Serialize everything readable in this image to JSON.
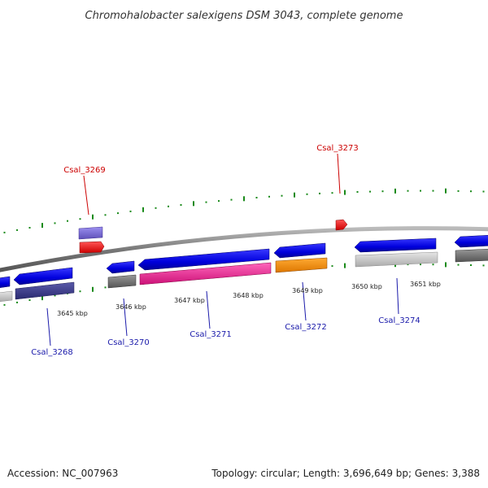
{
  "title": "Chromohalobacter salexigens DSM 3043, complete genome",
  "footer": {
    "accession": "Accession: NC_007963",
    "summary": "Topology: circular; Length: 3,696,649 bp; Genes: 3,388"
  },
  "scale_labels": [
    "3645 kbp",
    "3646 kbp",
    "3647 kbp",
    "3648 kbp",
    "3649 kbp",
    "3650 kbp",
    "3651 kbp"
  ],
  "genes": {
    "forward": [
      "Csal_3269",
      "Csal_3273"
    ],
    "reverse": [
      "Csal_3268",
      "Csal_3270",
      "Csal_3271",
      "Csal_3272",
      "Csal_3274"
    ]
  },
  "colors": {
    "backbone": "#888888",
    "cds_blue": "#1010e0",
    "cds_red": "#ee0000",
    "cds_pink": "#ee2299",
    "cds_orange": "#ff8800",
    "cds_purple": "#7a6bd0",
    "cds_darkpurple": "#3a3a8a",
    "cds_gray": "#777777",
    "cds_lightgray": "#cccccc",
    "tick_green": "#1a8a1a"
  }
}
